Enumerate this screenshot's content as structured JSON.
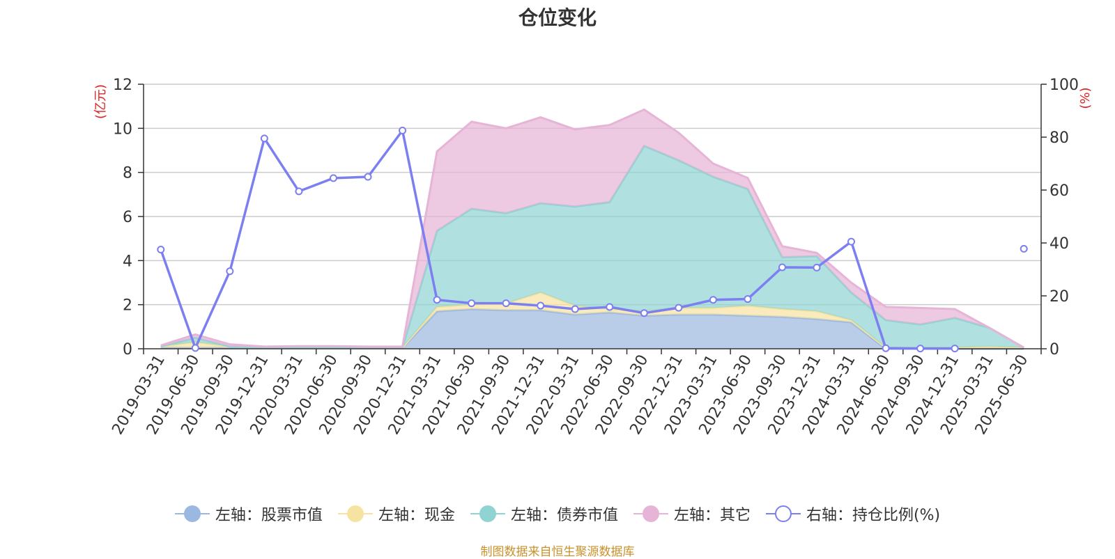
{
  "title": "仓位变化",
  "footer": "制图数据来自恒生聚源数据库",
  "chart_data": {
    "type": "area",
    "title": "仓位变化",
    "categories": [
      "2019-03-31",
      "2019-06-30",
      "2019-09-30",
      "2019-12-31",
      "2020-03-31",
      "2020-06-30",
      "2020-09-30",
      "2020-12-31",
      "2021-03-31",
      "2021-06-30",
      "2021-09-30",
      "2021-12-31",
      "2022-03-31",
      "2022-06-30",
      "2022-09-30",
      "2022-12-31",
      "2023-03-31",
      "2023-06-30",
      "2023-09-30",
      "2023-12-31",
      "2024-03-31",
      "2024-06-30",
      "2024-09-30",
      "2024-12-31",
      "2025-03-31",
      "2025-06-30"
    ],
    "left_axis": {
      "label": "(亿元)",
      "ylim": [
        0,
        12
      ],
      "ticks": [
        0,
        2,
        4,
        6,
        8,
        10,
        12
      ]
    },
    "right_axis": {
      "label": "(%)",
      "ylim": [
        0,
        100
      ],
      "ticks": [
        0,
        20,
        40,
        60,
        80,
        100
      ]
    },
    "grid": true,
    "legend_position": "bottom",
    "stacked": true,
    "series": [
      {
        "name": "左轴：股票市值",
        "axis": "left",
        "type": "area",
        "color": "#9bb8e0",
        "values": [
          0.05,
          0.05,
          0.05,
          0.03,
          0.04,
          0.04,
          0.03,
          0.03,
          1.7,
          1.8,
          1.75,
          1.75,
          1.55,
          1.65,
          1.5,
          1.55,
          1.55,
          1.5,
          1.45,
          1.35,
          1.2,
          0.0,
          0.0,
          0.0,
          0.0,
          0.0
        ]
      },
      {
        "name": "左轴：现金",
        "axis": "left",
        "type": "area",
        "color": "#f7e3a1",
        "values": [
          0.05,
          0.25,
          0.05,
          0.02,
          0.03,
          0.03,
          0.02,
          0.02,
          0.2,
          0.2,
          0.3,
          0.8,
          0.4,
          0.15,
          0.2,
          0.3,
          0.3,
          0.45,
          0.35,
          0.35,
          0.1,
          0.05,
          0.05,
          0.05,
          0.1,
          0.05
        ]
      },
      {
        "name": "左轴：债券市值",
        "axis": "left",
        "type": "area",
        "color": "#8fd3d3",
        "values": [
          0.0,
          0.2,
          0.0,
          0.0,
          0.0,
          0.0,
          0.0,
          0.0,
          3.45,
          4.35,
          4.1,
          4.05,
          4.5,
          4.85,
          7.5,
          6.7,
          5.95,
          5.3,
          2.35,
          2.5,
          1.25,
          1.25,
          1.05,
          1.35,
          0.85,
          0.0
        ]
      },
      {
        "name": "左轴：其它",
        "axis": "left",
        "type": "area",
        "color": "#e6b4d6",
        "values": [
          0.05,
          0.15,
          0.1,
          0.05,
          0.05,
          0.05,
          0.05,
          0.05,
          3.6,
          3.95,
          3.85,
          3.9,
          3.5,
          3.5,
          1.65,
          1.25,
          0.6,
          0.5,
          0.5,
          0.15,
          0.45,
          0.6,
          0.75,
          0.4,
          0.0,
          0.0
        ]
      },
      {
        "name": "右轴：持仓比例(%)",
        "axis": "right",
        "type": "line",
        "color": "#7b7ff0",
        "values": [
          37.5,
          0.3,
          29.3,
          79.5,
          59.5,
          64.5,
          65.0,
          82.5,
          18.5,
          17.2,
          17.2,
          16.3,
          15.0,
          15.8,
          13.5,
          15.5,
          18.5,
          18.8,
          30.8,
          30.7,
          40.5,
          0.2,
          0.1,
          0.1,
          null,
          37.8
        ]
      }
    ]
  }
}
